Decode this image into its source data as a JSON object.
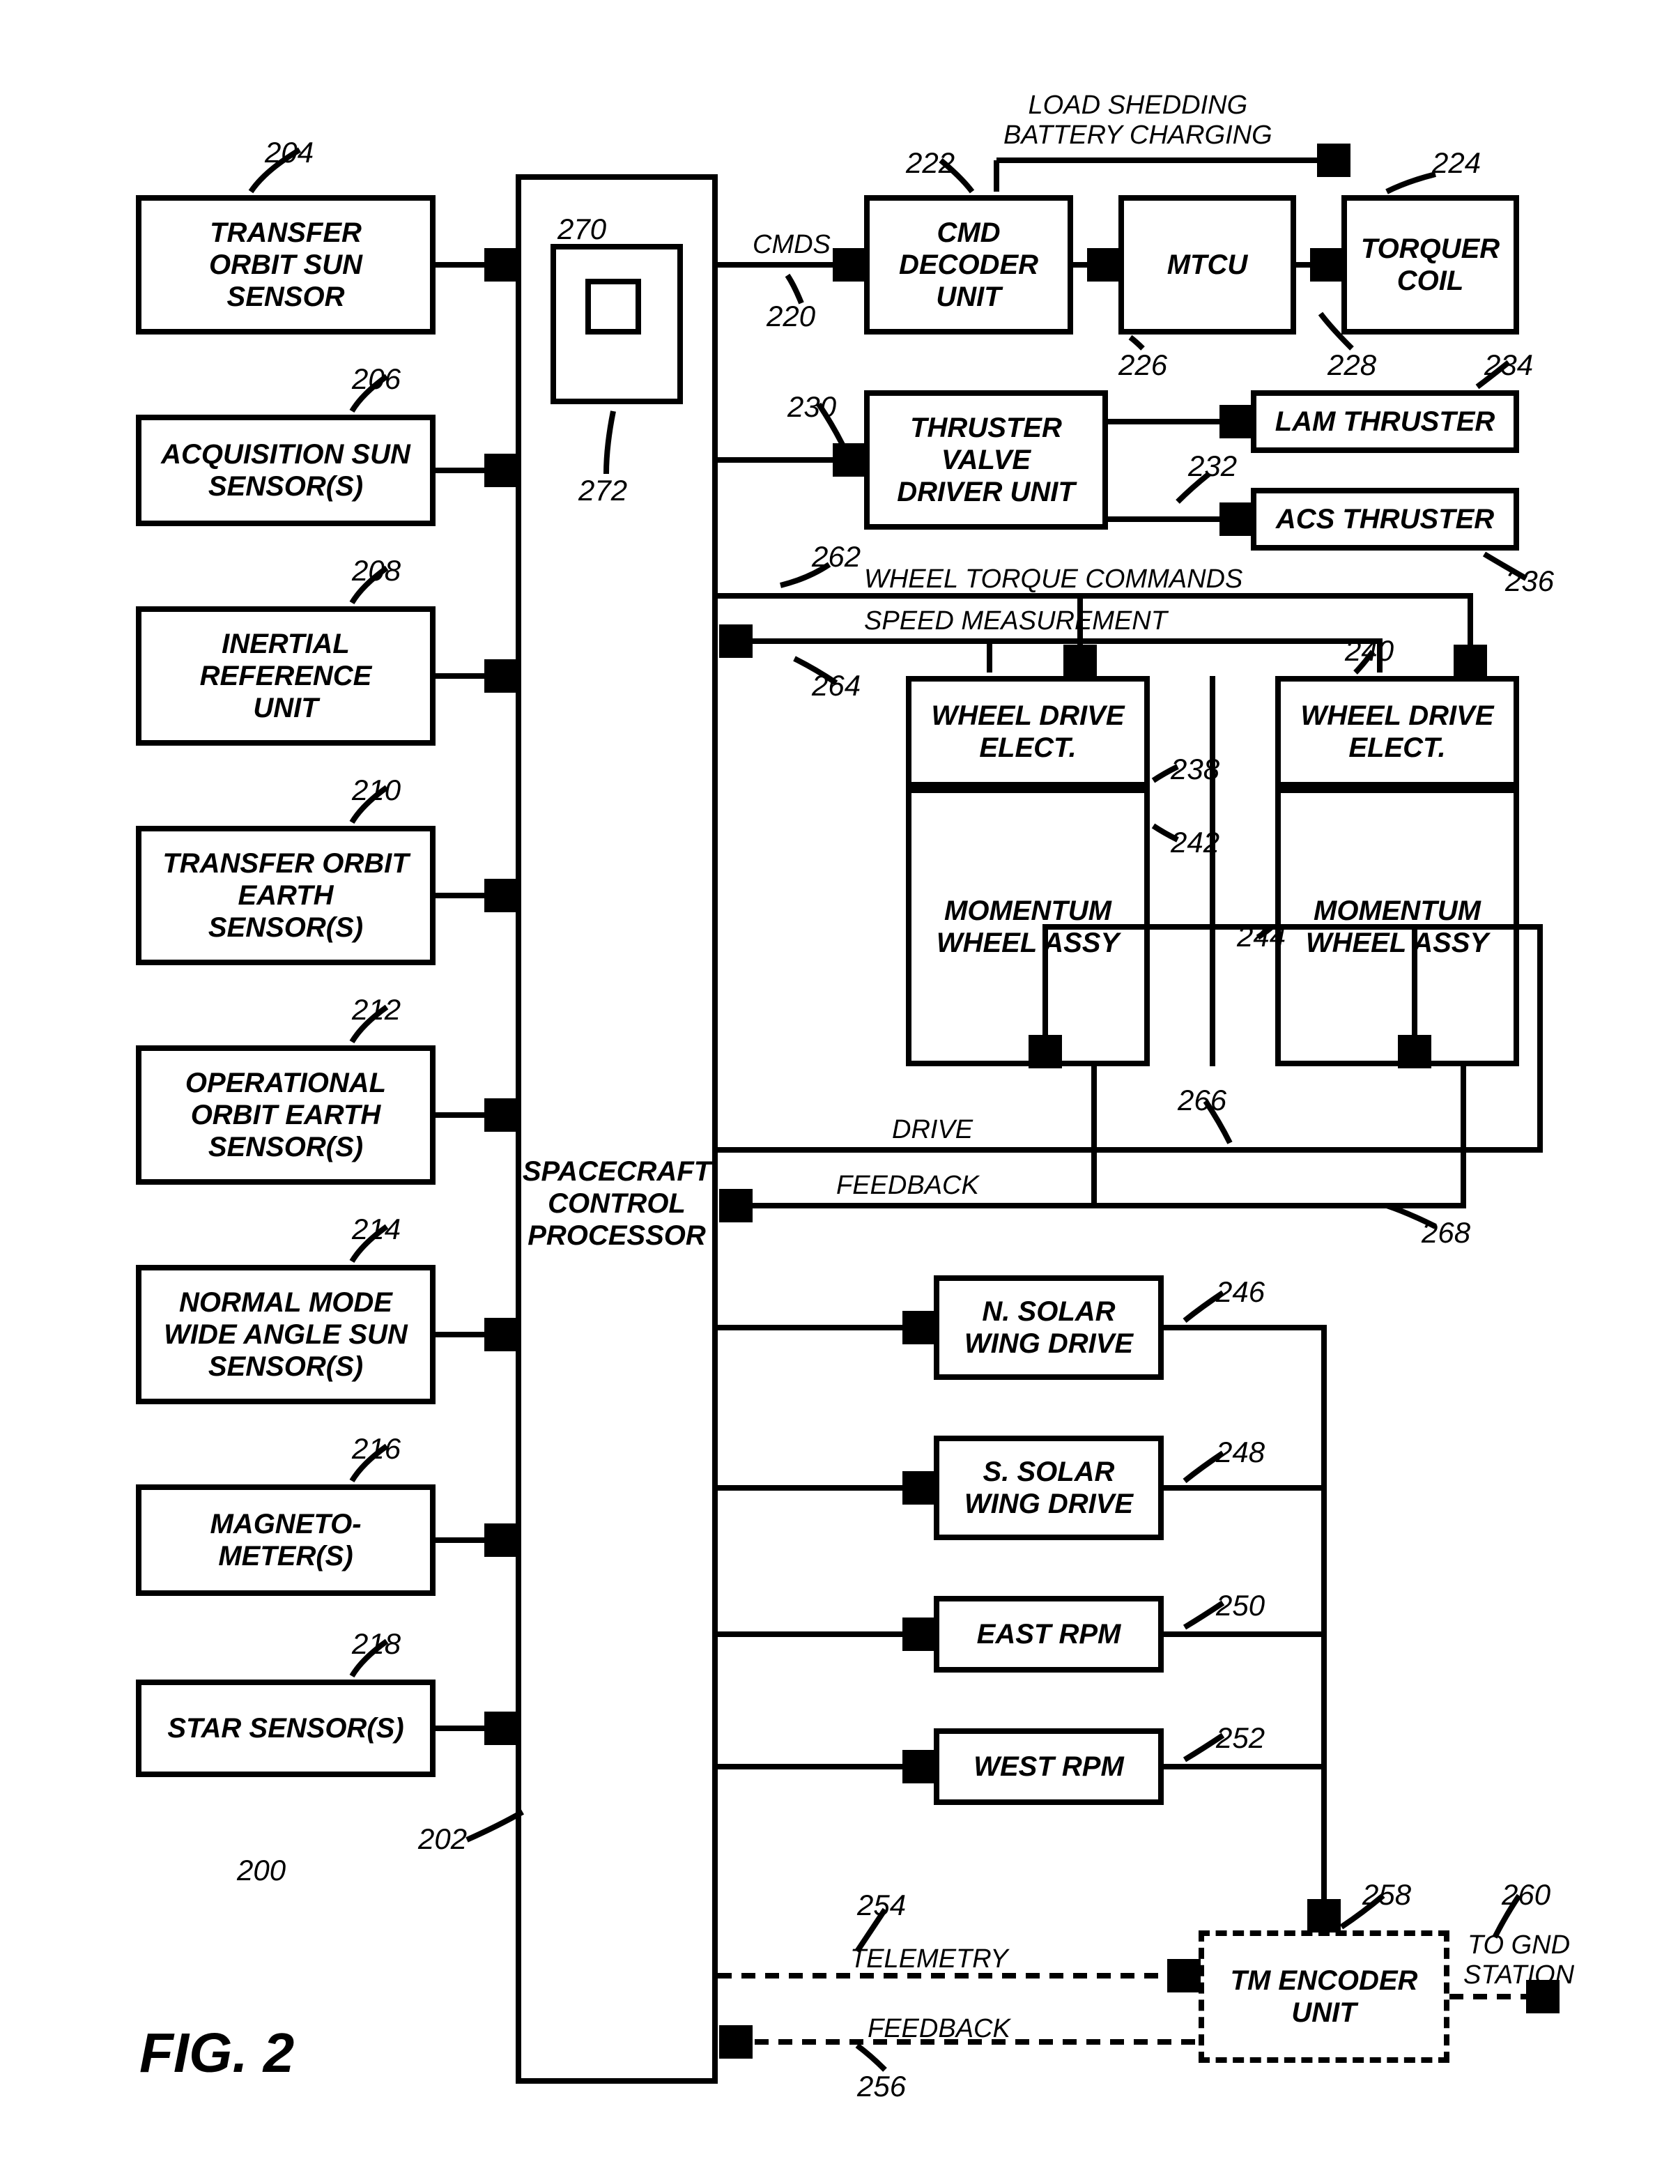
{
  "fontsize_box": 40,
  "fontsize_ref": 42,
  "fontsize_label": 38,
  "fontsize_fig": 80,
  "fig_caption": "FIG. 2",
  "sensors": {
    "s204": {
      "label": "TRANSFER\nORBIT SUN\nSENSOR",
      "ref": "204"
    },
    "s206": {
      "label": "ACQUISITION SUN\nSENSOR(S)",
      "ref": "206"
    },
    "s208": {
      "label": "INERTIAL\nREFERENCE\nUNIT",
      "ref": "208"
    },
    "s210": {
      "label": "TRANSFER ORBIT\nEARTH\nSENSOR(S)",
      "ref": "210"
    },
    "s212": {
      "label": "OPERATIONAL\nORBIT EARTH\nSENSOR(S)",
      "ref": "212"
    },
    "s214": {
      "label": "NORMAL MODE\nWIDE ANGLE SUN\nSENSOR(S)",
      "ref": "214"
    },
    "s216": {
      "label": "MAGNETO-\nMETER(S)",
      "ref": "216"
    },
    "s218": {
      "label": "STAR SENSOR(S)",
      "ref": "218"
    }
  },
  "scp": {
    "label": "SPACECRAFT\nCONTROL\nPROCESSOR",
    "ref": "202"
  },
  "scp_inner_ref1": "270",
  "scp_inner_ref2": "272",
  "cmd_decoder": {
    "label": "CMD\nDECODER\nUNIT",
    "ref": "222"
  },
  "mtcu": {
    "label": "MTCU",
    "ref": "226"
  },
  "torquer": {
    "label": "TORQUER\nCOIL",
    "ref": "224"
  },
  "thruster_valve": {
    "label": "THRUSTER\nVALVE\nDRIVER UNIT",
    "ref": "230"
  },
  "lam_thruster": {
    "label": "LAM THRUSTER",
    "ref": "234"
  },
  "acs_thruster": {
    "label": "ACS THRUSTER",
    "ref": "236"
  },
  "torquer_line_ref": "228",
  "acs_line_ref": "232",
  "wheel_drive_1": {
    "label": "WHEEL DRIVE\nELECT.",
    "ref": "238"
  },
  "wheel_drive_2": {
    "label": "WHEEL DRIVE\nELECT.",
    "ref": "240"
  },
  "momentum_1": {
    "label": "MOMENTUM\nWHEEL ASSY",
    "ref": "242"
  },
  "momentum_2": {
    "label": "MOMENTUM\nWHEEL ASSY",
    "ref": "244"
  },
  "n_solar": {
    "label": "N. SOLAR\nWING DRIVE",
    "ref": "246"
  },
  "s_solar": {
    "label": "S. SOLAR\nWING DRIVE",
    "ref": "248"
  },
  "east_rpm": {
    "label": "EAST RPM",
    "ref": "250"
  },
  "west_rpm": {
    "label": "WEST RPM",
    "ref": "252"
  },
  "tm_encoder": {
    "label": "TM ENCODER\nUNIT",
    "ref": "258"
  },
  "labels": {
    "cmds": "CMDS",
    "cmds_ref": "220",
    "load_shedding": "LOAD SHEDDING\nBATTERY CHARGING",
    "wheel_torque": "WHEEL TORQUE COMMANDS",
    "wheel_torque_ref": "262",
    "speed_meas": "SPEED MEASUREMENT",
    "speed_meas_ref": "264",
    "drive": "DRIVE",
    "drive_ref": "266",
    "feedback1": "FEEDBACK",
    "feedback1_ref": "268",
    "telemetry": "TELEMETRY",
    "telemetry_ref": "254",
    "feedback2": "FEEDBACK",
    "feedback2_ref": "256",
    "to_gnd": "TO GND\nSTATION",
    "to_gnd_ref": "260",
    "main_ref": "200"
  }
}
